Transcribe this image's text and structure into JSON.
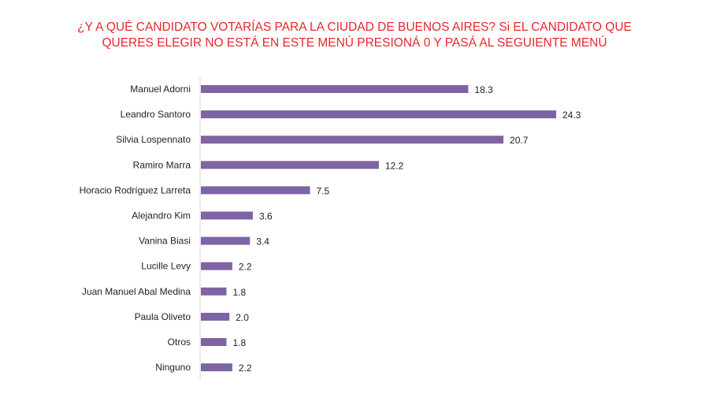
{
  "chart_data": {
    "type": "bar",
    "orientation": "horizontal",
    "title_lines": [
      "¿Y A QUÉ CANDIDATO VOTARÍAS PARA LA CIUDAD DE BUENOS AIRES? Si EL CANDIDATO QUE",
      "QUERES ELEGIR NO ESTÁ EN ESTE MENÚ PRESIONÁ 0 Y PASÁ AL SEGUIENTE MENÚ"
    ],
    "categories": [
      "Manuel Adorni",
      "Leandro Santoro",
      "Silvia Lospennato",
      "Ramiro Marra",
      "Horacio Rodríguez Larreta",
      "Alejandro Kim",
      "Vanina Biasi",
      "Lucille Levy",
      "Juan Manuel Abal Medina",
      "Paula Oliveto",
      "Otros",
      "Ninguno"
    ],
    "values": [
      18.3,
      24.3,
      20.7,
      12.2,
      7.5,
      3.6,
      3.4,
      2.2,
      1.8,
      2.0,
      1.8,
      2.2
    ],
    "value_labels": [
      "18.3",
      "24.3",
      "20.7",
      "12.2",
      "7.5",
      "3.6",
      "3.4",
      "2.2",
      "1.8",
      "2.0",
      "1.8",
      "2.2"
    ],
    "xlim": [
      0,
      24.3
    ],
    "grid": false,
    "colors": {
      "bar": "#7e64a3",
      "title": "#e8262c"
    }
  }
}
